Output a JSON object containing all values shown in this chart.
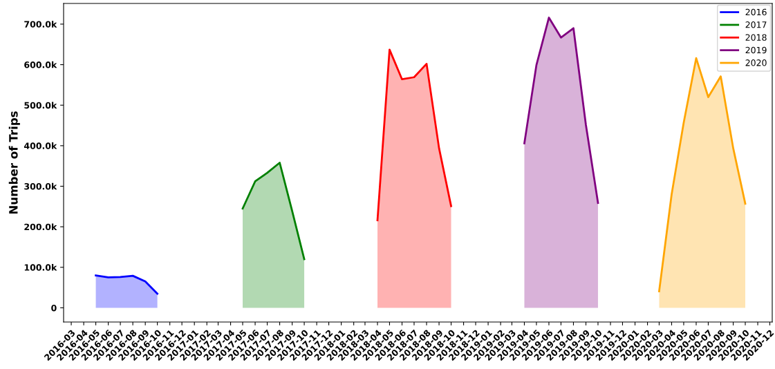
{
  "chart_data": {
    "type": "area",
    "ylabel": "Number of Trips",
    "legend": "top right",
    "grid": false,
    "xlim": [
      "2016-02-11",
      "2020-12-07"
    ],
    "xticks": [
      "2016-03",
      "2016-04",
      "2016-05",
      "2016-06",
      "2016-07",
      "2016-08",
      "2016-09",
      "2016-10",
      "2016-11",
      "2016-12",
      "2017-01",
      "2017-02",
      "2017-03",
      "2017-04",
      "2017-05",
      "2017-06",
      "2017-07",
      "2017-08",
      "2017-09",
      "2017-10",
      "2017-11",
      "2017-12",
      "2018-01",
      "2018-02",
      "2018-03",
      "2018-04",
      "2018-05",
      "2018-06",
      "2018-07",
      "2018-08",
      "2018-09",
      "2018-10",
      "2018-11",
      "2018-12",
      "2019-01",
      "2019-02",
      "2019-03",
      "2019-04",
      "2019-05",
      "2019-06",
      "2019-07",
      "2019-08",
      "2019-09",
      "2019-10",
      "2019-11",
      "2019-12",
      "2020-01",
      "2020-02",
      "2020-03",
      "2020-04",
      "2020-05",
      "2020-06",
      "2020-07",
      "2020-08",
      "2020-09",
      "2020-10",
      "2020-11",
      "2020-12"
    ],
    "ylim": [
      -35000,
      751000
    ],
    "yticks": [
      0,
      {
        "value": 100000,
        "label": "100.0k"
      },
      {
        "value": 200000,
        "label": "200.0k"
      },
      {
        "value": 300000,
        "label": "300.0k"
      },
      {
        "value": 400000,
        "label": "400.0k"
      },
      {
        "value": 500000,
        "label": "500.0k"
      },
      {
        "value": 600000,
        "label": "600.0k"
      },
      {
        "value": 700000,
        "label": "700.0k"
      }
    ],
    "series": [
      {
        "name": "2016",
        "color": "#0000ff",
        "x": [
          "2016-05",
          "2016-06",
          "2016-07",
          "2016-08",
          "2016-09",
          "2016-10"
        ],
        "values": [
          80000,
          75000,
          76000,
          79000,
          65000,
          35000
        ]
      },
      {
        "name": "2017",
        "color": "#008000",
        "x": [
          "2017-05",
          "2017-06",
          "2017-07",
          "2017-08",
          "2017-09",
          "2017-10"
        ],
        "values": [
          245000,
          312000,
          333000,
          358000,
          239000,
          120000
        ]
      },
      {
        "name": "2018",
        "color": "#ff0000",
        "x": [
          "2018-04",
          "2018-05",
          "2018-06",
          "2018-07",
          "2018-08",
          "2018-09",
          "2018-10"
        ],
        "values": [
          216000,
          637000,
          564000,
          569000,
          602000,
          394000,
          251000
        ]
      },
      {
        "name": "2019",
        "color": "#800080",
        "x": [
          "2019-04",
          "2019-05",
          "2019-06",
          "2019-07",
          "2019-08",
          "2019-09",
          "2019-10"
        ],
        "values": [
          406000,
          599000,
          716000,
          667000,
          690000,
          451000,
          259000
        ]
      },
      {
        "name": "2020",
        "color": "#ffa500",
        "x": [
          "2020-03",
          "2020-04",
          "2020-05",
          "2020-06",
          "2020-07",
          "2020-08",
          "2020-09",
          "2020-10"
        ],
        "values": [
          41000,
          280000,
          457000,
          616000,
          520000,
          571000,
          394000,
          257000
        ]
      }
    ]
  }
}
